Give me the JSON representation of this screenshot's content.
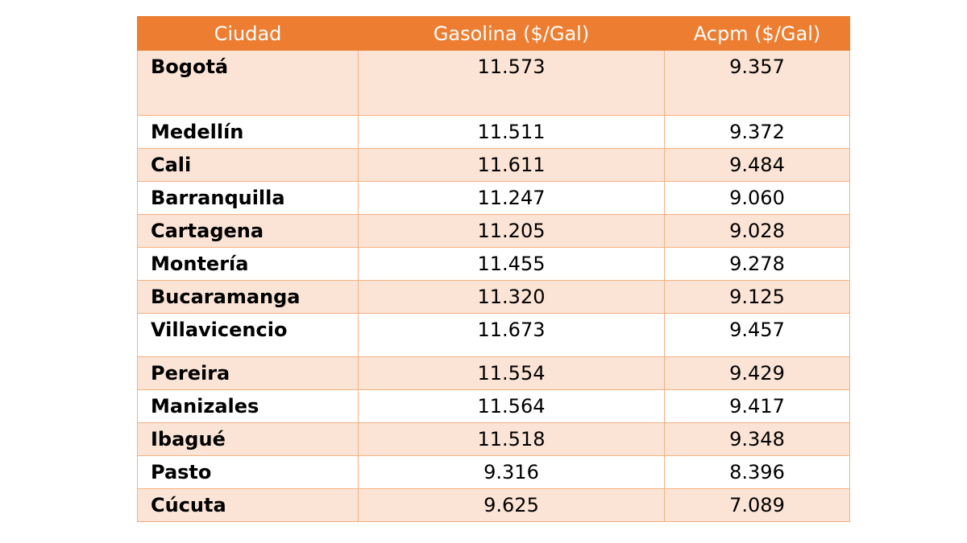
{
  "table": {
    "header": [
      "Ciudad",
      "Gasolina ($/Gal)",
      "Acpm ($/Gal)"
    ],
    "rows": [
      [
        "Bogotá",
        "11.573",
        "9.357"
      ],
      [
        "Medellín",
        "11.511",
        "9.372"
      ],
      [
        "Cali",
        "11.611",
        "9.484"
      ],
      [
        "Barranquilla",
        "11.247",
        "9.060"
      ],
      [
        "Cartagena",
        "11.205",
        "9.028"
      ],
      [
        "Montería",
        "11.455",
        "9.278"
      ],
      [
        "Bucaramanga",
        "11.320",
        "9.125"
      ],
      [
        "Villavicencio",
        "11.673",
        "9.457"
      ],
      [
        "Pereira",
        "11.554",
        "9.429"
      ],
      [
        "Manizales",
        "11.564",
        "9.417"
      ],
      [
        "Ibagué",
        "11.518",
        "9.348"
      ],
      [
        "Pasto",
        "9.316",
        "8.396"
      ],
      [
        "Cúcuta",
        "9.625",
        "7.089"
      ]
    ]
  }
}
